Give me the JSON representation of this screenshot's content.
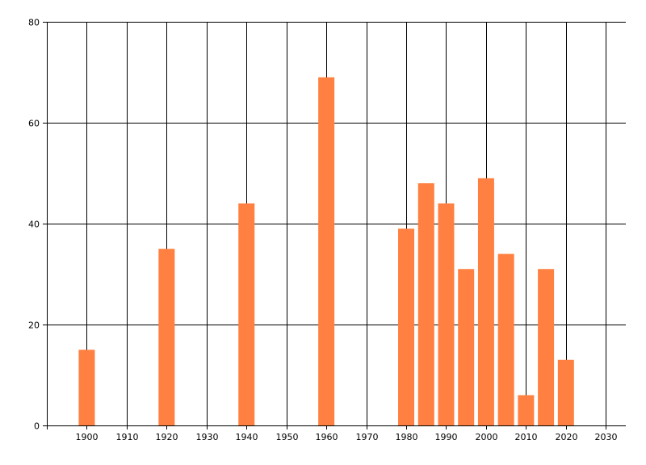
{
  "chart_data": {
    "type": "bar",
    "x": [
      1900,
      1920,
      1940,
      1960,
      1980,
      1985,
      1990,
      1995,
      2000,
      2005,
      2010,
      2015,
      2020
    ],
    "values": [
      15,
      35,
      44,
      69,
      39,
      48,
      44,
      31,
      49,
      34,
      6,
      31,
      13
    ],
    "xlim": [
      1890,
      2035
    ],
    "ylim": [
      0,
      80
    ],
    "x_ticks": [
      1900,
      1910,
      1920,
      1930,
      1940,
      1950,
      1960,
      1970,
      1980,
      1990,
      2000,
      2010,
      2020,
      2030
    ],
    "y_ticks": [
      0,
      20,
      40,
      60,
      80
    ],
    "grid": true,
    "legend": "none",
    "bar_color": "#ff8040",
    "title": "",
    "xlabel": "",
    "ylabel": ""
  }
}
